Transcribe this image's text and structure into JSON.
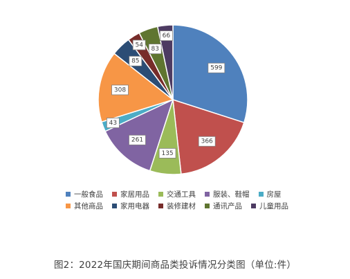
{
  "chart_data": {
    "type": "pie",
    "categories": [
      "一般食品",
      "家居用品",
      "交通工具",
      "服装、鞋帽",
      "房屋",
      "其他商品",
      "家用电器",
      "装修建材",
      "通讯产品",
      "儿童用品"
    ],
    "values": [
      599,
      366,
      135,
      261,
      43,
      308,
      85,
      54,
      83,
      66
    ],
    "colors": [
      "#4f81bd",
      "#c0504d",
      "#9bbb59",
      "#8064a2",
      "#4bacc6",
      "#f79646",
      "#2c4d75",
      "#772c2a",
      "#5f7530",
      "#4d3b62"
    ],
    "legend_position": "bottom"
  },
  "caption": "图2：2022年国庆期间商品类投诉情况分类图（单位:件）"
}
